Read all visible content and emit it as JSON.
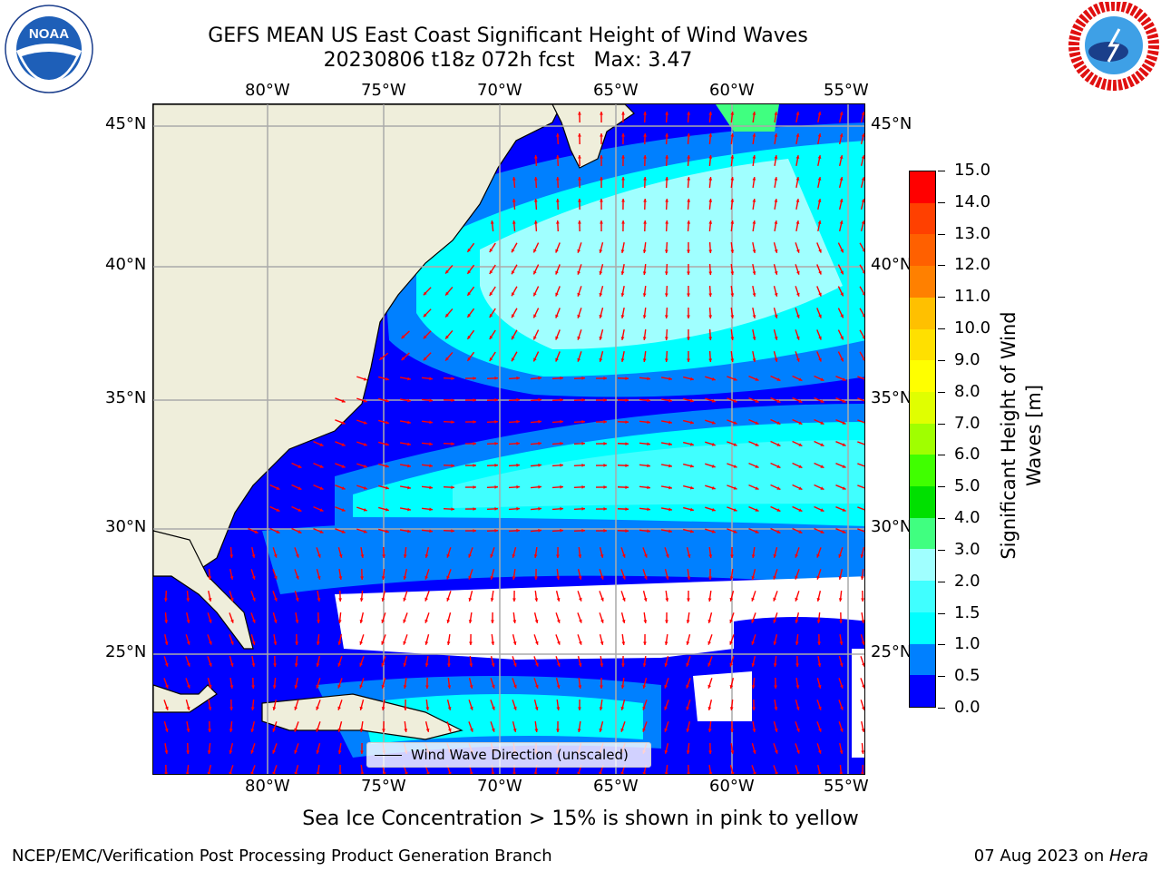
{
  "title": {
    "line1": "GEFS MEAN US East Coast Significant Height of Wind Waves",
    "line2": "20230806 t18z 072h fcst   Max: 3.47"
  },
  "logos": {
    "left": {
      "name": "NOARA-logo",
      "text": "NOAA"
    },
    "right": {
      "name": "national-weather-service-logo"
    }
  },
  "map": {
    "lon_ticks": [
      "80°W",
      "75°W",
      "70°W",
      "65°W",
      "60°W",
      "55°W"
    ],
    "lat_ticks": [
      "45°N",
      "40°N",
      "35°N",
      "30°N",
      "25°N"
    ],
    "legend_label": "Wind Wave Direction (unscaled)",
    "land_color": "#efeedb",
    "arrow_color": "#ff0000"
  },
  "colorbar": {
    "title_line1": "Significant Height of Wind",
    "title_line2": "Waves [m]",
    "ticks": [
      "0.0",
      "0.5",
      "1.0",
      "1.5",
      "2.0",
      "3.0",
      "4.0",
      "5.0",
      "6.0",
      "7.0",
      "8.0",
      "9.0",
      "10.0",
      "11.0",
      "12.0",
      "13.0",
      "14.0",
      "15.0"
    ],
    "colors": [
      "#0000ff",
      "#0080ff",
      "#00ffff",
      "#40ffff",
      "#a0ffff",
      "#40ff80",
      "#00e000",
      "#40ff00",
      "#a0ff00",
      "#e0ff00",
      "#ffff00",
      "#ffe000",
      "#ffc000",
      "#ff8000",
      "#ff6000",
      "#ff4000",
      "#ff0000"
    ]
  },
  "note": "Sea Ice Concentration > 15% is shown in pink to yellow",
  "footer": {
    "left": "NCEP/EMC/Verification Post Processing Product Generation Branch",
    "right_date": "07 Aug 2023 on ",
    "right_host": "Hera"
  }
}
